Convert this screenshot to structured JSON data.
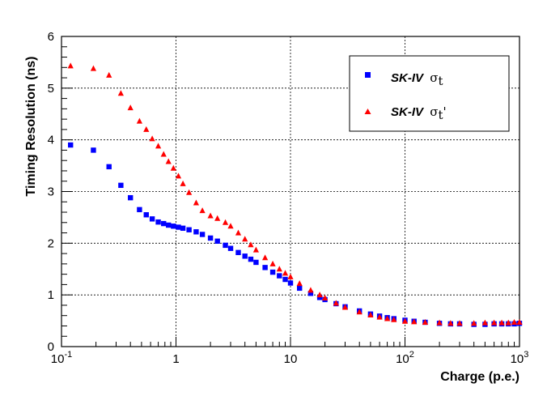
{
  "chart_data": {
    "type": "scatter",
    "xlabel": "Charge (p.e.)",
    "ylabel": "Timing Resolution (ns)",
    "xscale": "log",
    "xlim": [
      0.1,
      1000
    ],
    "ylim": [
      0,
      6
    ],
    "grid": true,
    "legend_position": "top-right",
    "x_tick_labels": [
      {
        "value": 0.1,
        "base": "10",
        "exp": "-1"
      },
      {
        "value": 1,
        "base": "1",
        "exp": ""
      },
      {
        "value": 10,
        "base": "10",
        "exp": ""
      },
      {
        "value": 100,
        "base": "10",
        "exp": "2"
      },
      {
        "value": 1000,
        "base": "10",
        "exp": "3"
      }
    ],
    "y_ticks": [
      "0",
      "1",
      "2",
      "3",
      "4",
      "5",
      "6"
    ],
    "series": [
      {
        "name": "SK-IV",
        "name_symbol": "σ",
        "name_subscript": "t",
        "name_prime": "",
        "marker": "square",
        "color": "#0000ff",
        "points": [
          [
            0.12,
            3.9
          ],
          [
            0.19,
            3.8
          ],
          [
            0.26,
            3.48
          ],
          [
            0.33,
            3.12
          ],
          [
            0.4,
            2.88
          ],
          [
            0.48,
            2.65
          ],
          [
            0.55,
            2.55
          ],
          [
            0.62,
            2.47
          ],
          [
            0.7,
            2.41
          ],
          [
            0.78,
            2.38
          ],
          [
            0.86,
            2.35
          ],
          [
            0.95,
            2.33
          ],
          [
            1.05,
            2.31
          ],
          [
            1.15,
            2.29
          ],
          [
            1.3,
            2.26
          ],
          [
            1.5,
            2.22
          ],
          [
            1.7,
            2.17
          ],
          [
            2.0,
            2.1
          ],
          [
            2.3,
            2.04
          ],
          [
            2.7,
            1.96
          ],
          [
            3.0,
            1.9
          ],
          [
            3.5,
            1.82
          ],
          [
            4.0,
            1.75
          ],
          [
            4.5,
            1.69
          ],
          [
            5.0,
            1.63
          ],
          [
            6.0,
            1.53
          ],
          [
            7.0,
            1.44
          ],
          [
            8.0,
            1.37
          ],
          [
            9.0,
            1.3
          ],
          [
            10,
            1.23
          ],
          [
            12,
            1.13
          ],
          [
            15,
            1.03
          ],
          [
            18,
            0.95
          ],
          [
            20,
            0.91
          ],
          [
            25,
            0.83
          ],
          [
            30,
            0.77
          ],
          [
            40,
            0.69
          ],
          [
            50,
            0.63
          ],
          [
            60,
            0.59
          ],
          [
            70,
            0.56
          ],
          [
            80,
            0.54
          ],
          [
            100,
            0.51
          ],
          [
            120,
            0.49
          ],
          [
            150,
            0.47
          ],
          [
            200,
            0.45
          ],
          [
            250,
            0.44
          ],
          [
            300,
            0.44
          ],
          [
            400,
            0.43
          ],
          [
            500,
            0.43
          ],
          [
            600,
            0.44
          ],
          [
            700,
            0.44
          ],
          [
            800,
            0.44
          ],
          [
            900,
            0.44
          ],
          [
            1000,
            0.45
          ]
        ]
      },
      {
        "name": "SK-IV",
        "name_symbol": "σ",
        "name_subscript": "t",
        "name_prime": "'",
        "marker": "triangle",
        "color": "#ff0000",
        "points": [
          [
            0.12,
            5.43
          ],
          [
            0.19,
            5.38
          ],
          [
            0.26,
            5.25
          ],
          [
            0.33,
            4.9
          ],
          [
            0.4,
            4.62
          ],
          [
            0.48,
            4.36
          ],
          [
            0.55,
            4.2
          ],
          [
            0.62,
            4.02
          ],
          [
            0.7,
            3.88
          ],
          [
            0.78,
            3.72
          ],
          [
            0.86,
            3.58
          ],
          [
            0.95,
            3.45
          ],
          [
            1.05,
            3.3
          ],
          [
            1.15,
            3.15
          ],
          [
            1.3,
            2.98
          ],
          [
            1.5,
            2.78
          ],
          [
            1.7,
            2.63
          ],
          [
            2.0,
            2.53
          ],
          [
            2.3,
            2.48
          ],
          [
            2.7,
            2.4
          ],
          [
            3.0,
            2.33
          ],
          [
            3.5,
            2.2
          ],
          [
            4.0,
            2.08
          ],
          [
            4.5,
            1.97
          ],
          [
            5.0,
            1.87
          ],
          [
            6.0,
            1.72
          ],
          [
            7.0,
            1.6
          ],
          [
            8.0,
            1.5
          ],
          [
            9.0,
            1.42
          ],
          [
            10,
            1.35
          ],
          [
            12,
            1.22
          ],
          [
            15,
            1.09
          ],
          [
            18,
            1.0
          ],
          [
            20,
            0.94
          ],
          [
            25,
            0.84
          ],
          [
            30,
            0.76
          ],
          [
            40,
            0.67
          ],
          [
            50,
            0.61
          ],
          [
            60,
            0.57
          ],
          [
            70,
            0.54
          ],
          [
            80,
            0.52
          ],
          [
            100,
            0.49
          ],
          [
            120,
            0.48
          ],
          [
            150,
            0.47
          ],
          [
            200,
            0.46
          ],
          [
            250,
            0.45
          ],
          [
            300,
            0.45
          ],
          [
            400,
            0.45
          ],
          [
            500,
            0.46
          ],
          [
            600,
            0.46
          ],
          [
            700,
            0.46
          ],
          [
            800,
            0.46
          ],
          [
            900,
            0.47
          ],
          [
            1000,
            0.47
          ]
        ]
      }
    ]
  }
}
